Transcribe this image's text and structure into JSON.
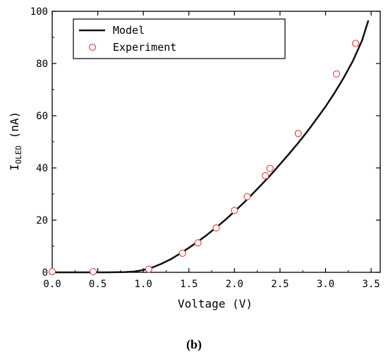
{
  "chart_data": {
    "type": "line",
    "title": "",
    "xlabel": "Voltage (V)",
    "ylabel": {
      "main": "I",
      "subscript": "OLED",
      "unit": " (nA)"
    },
    "xlim": [
      0,
      3.6
    ],
    "ylim": [
      0,
      100
    ],
    "xticks": [
      "0.0",
      "0.5",
      "1.0",
      "1.5",
      "2.0",
      "2.5",
      "3.0",
      "3.5"
    ],
    "yticks": [
      "0",
      "20",
      "40",
      "60",
      "80",
      "100"
    ],
    "grid": false,
    "legend_position": "top-left",
    "series": [
      {
        "name": "Model",
        "style": "line",
        "color": "#111111",
        "x": [
          0.0,
          0.2,
          0.4,
          0.6,
          0.8,
          0.9,
          1.0,
          1.1,
          1.2,
          1.3,
          1.4,
          1.5,
          1.6,
          1.7,
          1.8,
          1.9,
          2.0,
          2.1,
          2.2,
          2.3,
          2.4,
          2.5,
          2.6,
          2.7,
          2.8,
          2.9,
          3.0,
          3.1,
          3.2,
          3.3,
          3.4,
          3.47
        ],
        "y": [
          0.0,
          0.0,
          0.0,
          0.0,
          0.1,
          0.3,
          0.9,
          1.9,
          3.3,
          5.0,
          7.1,
          9.4,
          11.8,
          14.4,
          17.2,
          20.1,
          23.3,
          26.6,
          30.1,
          33.7,
          37.4,
          41.4,
          45.4,
          49.6,
          54.0,
          58.7,
          63.5,
          68.8,
          74.6,
          81.0,
          88.8,
          96.5
        ]
      },
      {
        "name": "Experiment",
        "style": "marker",
        "color": "#e53935",
        "x": [
          0.0,
          0.45,
          1.06,
          1.43,
          1.6,
          1.8,
          2.0,
          2.14,
          2.34,
          2.39,
          2.7,
          3.12,
          3.33
        ],
        "y": [
          0.3,
          0.3,
          1.2,
          7.3,
          11.3,
          17.0,
          23.7,
          29.0,
          37.0,
          39.8,
          53.2,
          76.0,
          87.7
        ]
      }
    ]
  },
  "caption": "(b)"
}
